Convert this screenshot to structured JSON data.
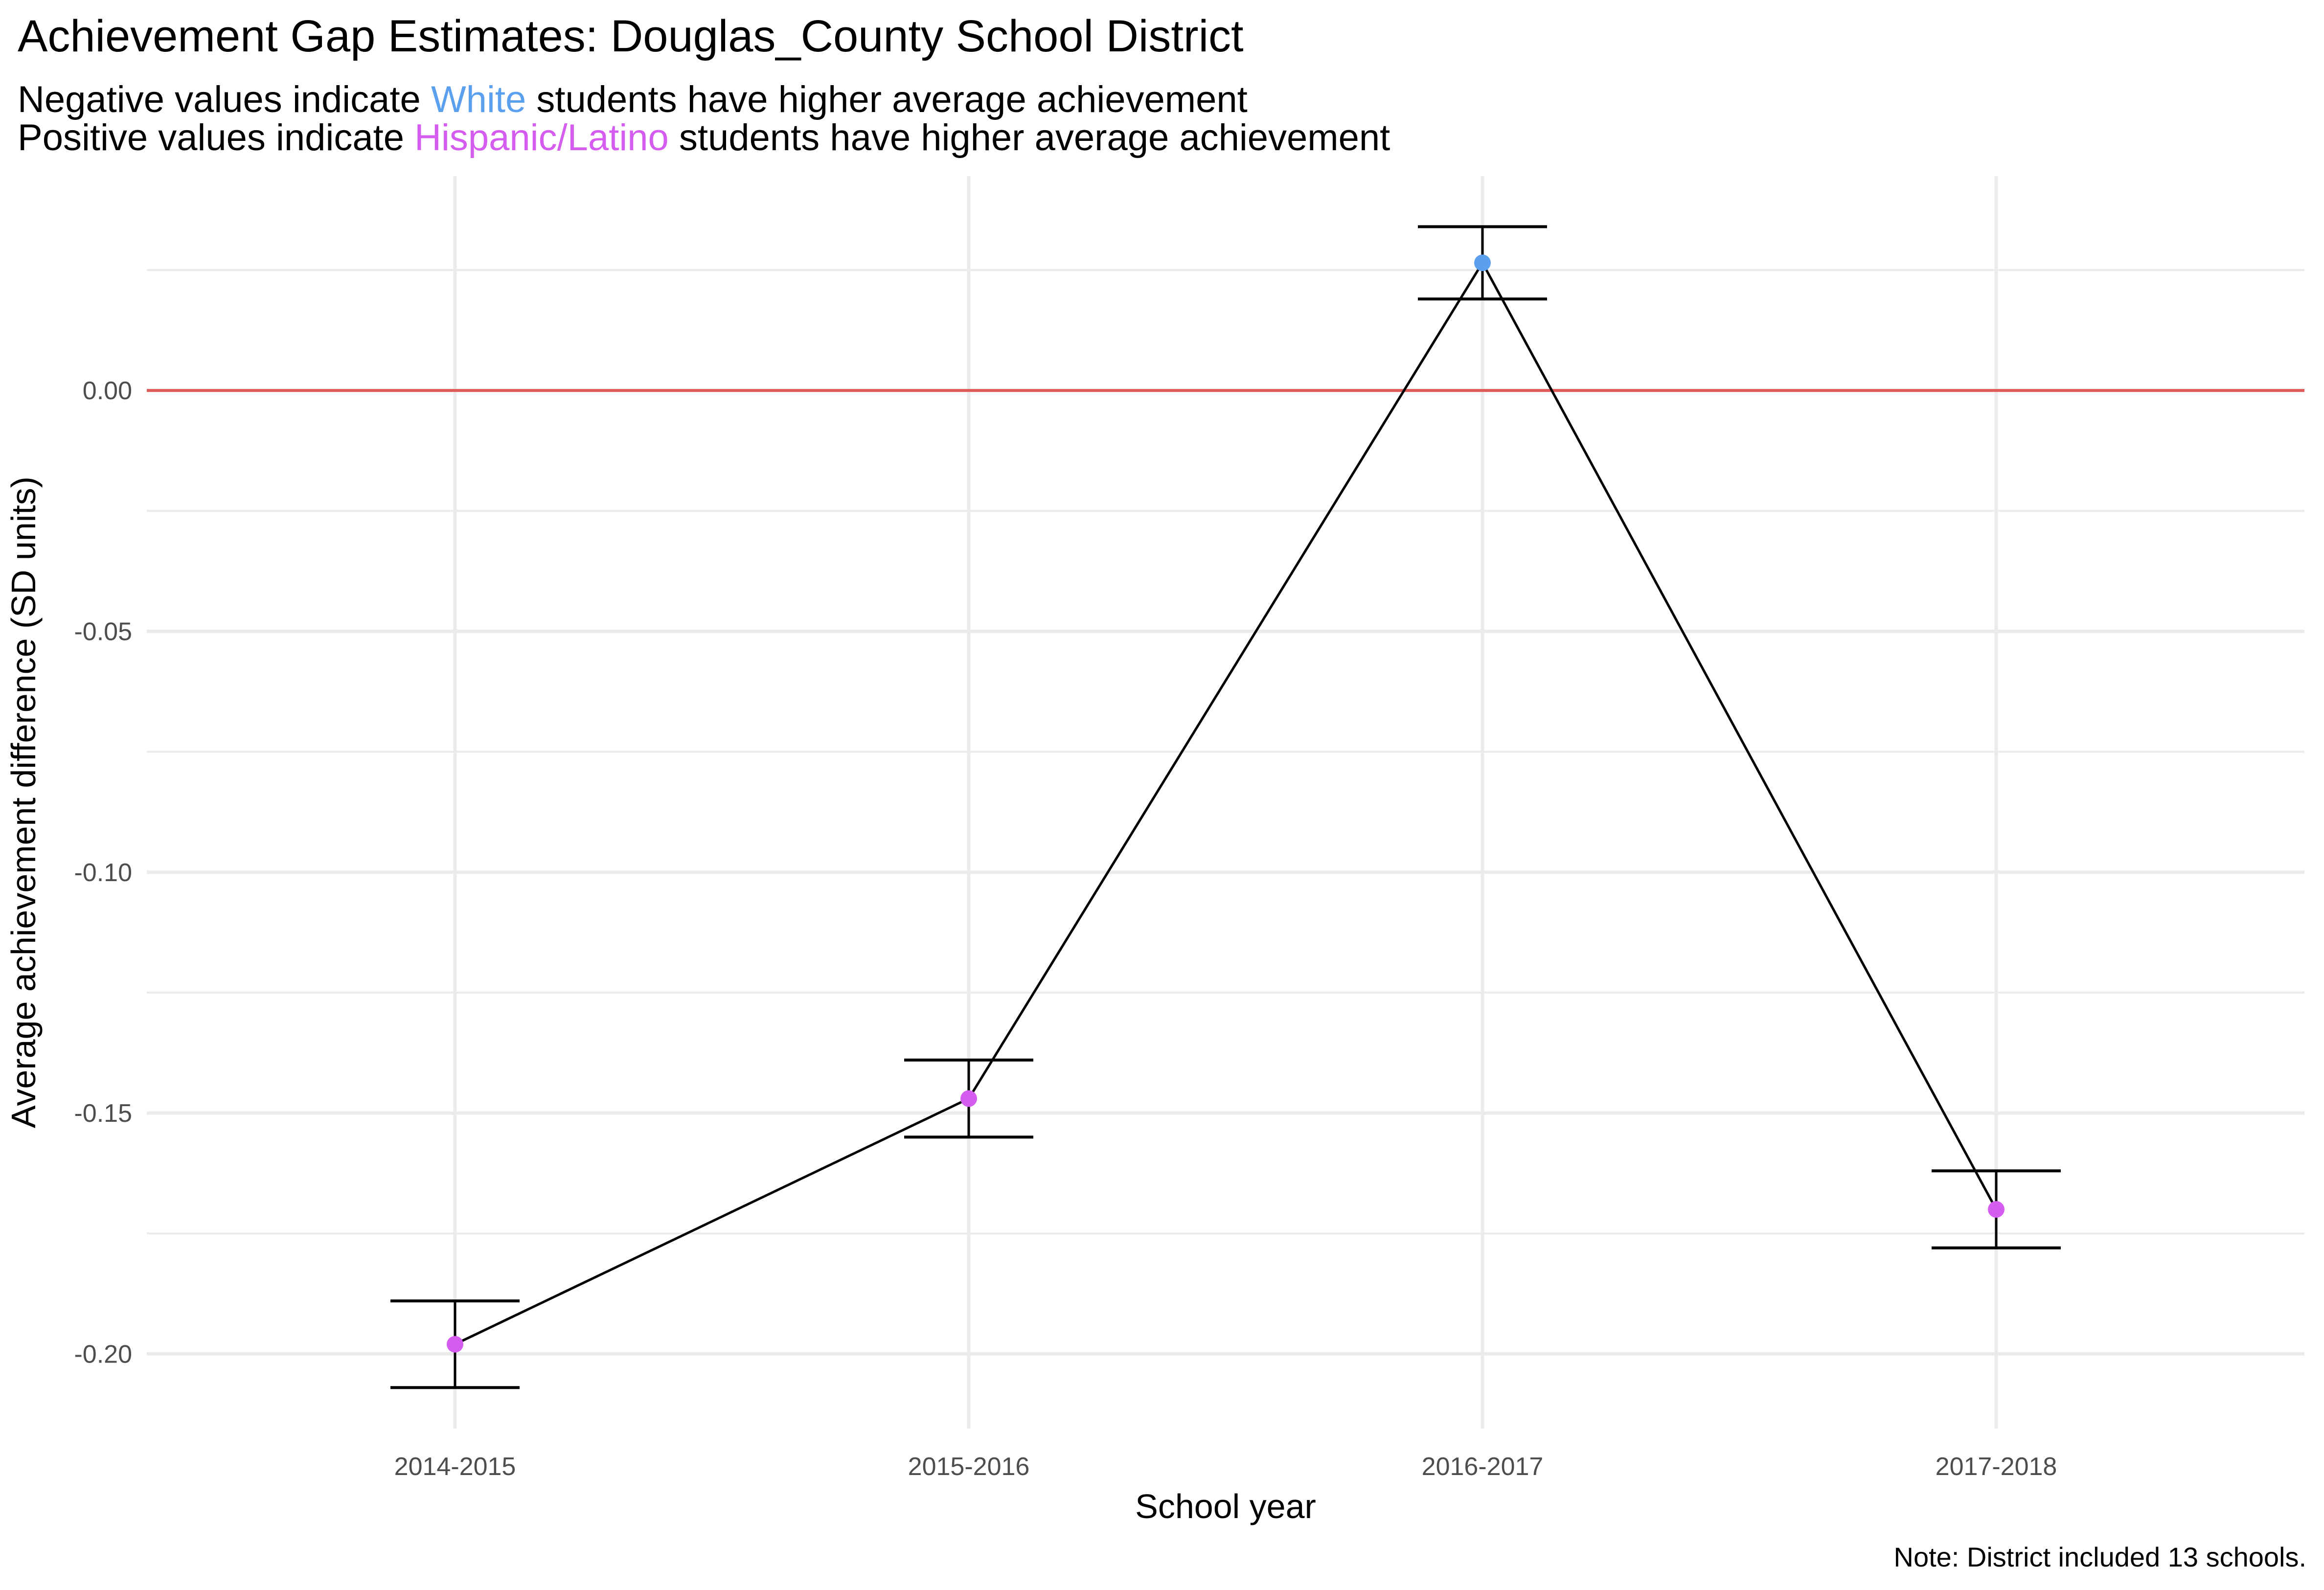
{
  "title": "Achievement Gap Estimates: Douglas_County School District",
  "subtitle": {
    "line1": {
      "prefix": "Negative values indicate ",
      "group": "White",
      "suffix": " students have higher average achievement"
    },
    "line2": {
      "prefix": "Positive values indicate ",
      "group": "Hispanic/Latino",
      "suffix": " students have higher average achievement"
    }
  },
  "caption": "Note: District included 13 schools.",
  "colors": {
    "white_group": "#5B9FEF",
    "hispanic_group": "#D45DF0",
    "reference_line": "#E05A5A",
    "grid": "#EBEBEB",
    "line": "#000000"
  },
  "chart_data": {
    "type": "line",
    "title": "Achievement Gap Estimates: Douglas_County School District",
    "xlabel": "School year",
    "ylabel": "Average achievement difference (SD units)",
    "categories": [
      "2014-2015",
      "2015-2016",
      "2016-2017",
      "2017-2018"
    ],
    "series": [
      {
        "values": [
          -0.198,
          -0.147,
          0.0265,
          -0.17
        ],
        "ci_lower": [
          -0.207,
          -0.155,
          0.019,
          -0.178
        ],
        "ci_upper": [
          -0.189,
          -0.139,
          0.034,
          -0.162
        ],
        "point_group": [
          "Hispanic/Latino",
          "Hispanic/Latino",
          "White",
          "Hispanic/Latino"
        ]
      }
    ],
    "ylim": [
      -0.2155,
      0.0445
    ],
    "yticks": [
      0.0,
      -0.05,
      -0.1,
      -0.15,
      -0.2
    ],
    "ytick_labels": [
      "0.00",
      "-0.05",
      "-0.10",
      "-0.15",
      "-0.20"
    ],
    "reference_line_y": 0,
    "grid": true,
    "legend": "none"
  }
}
